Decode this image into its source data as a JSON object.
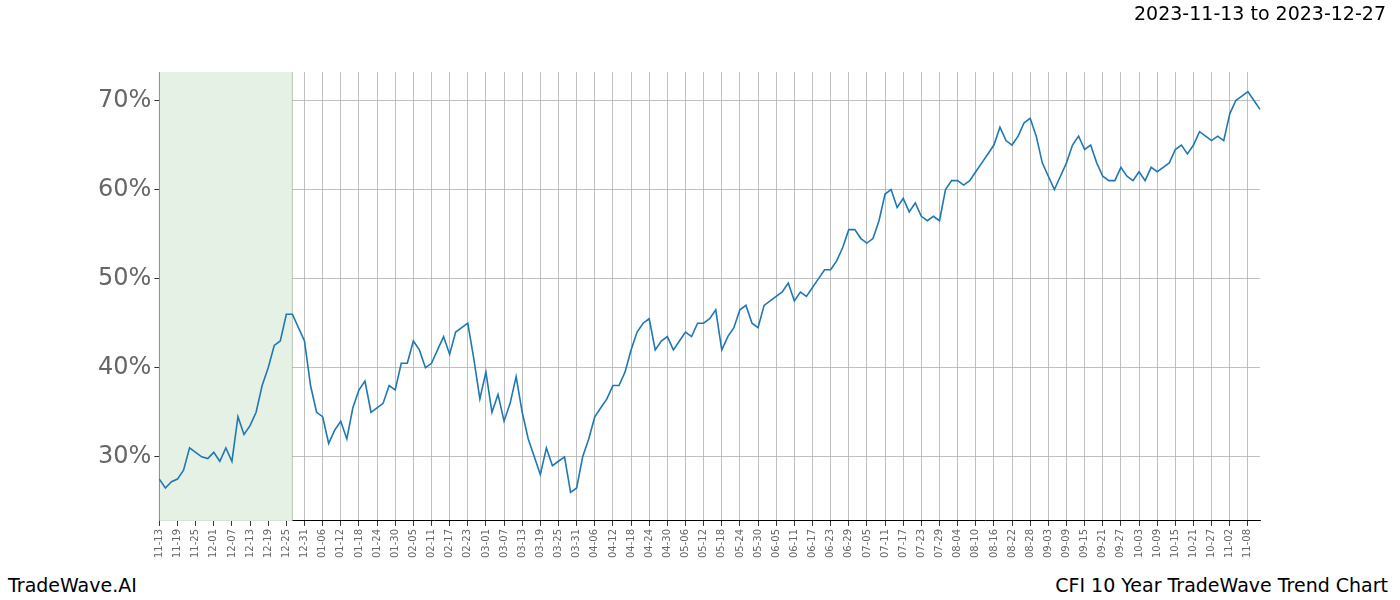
{
  "chart_data": {
    "type": "line",
    "title": "CFI 10 Year TradeWave Trend Chart",
    "subtitle": "2023-11-13 to 2023-12-27",
    "annotations": [
      "TradeWave.AI"
    ],
    "categories": [
      "11-13",
      null,
      null,
      "11-19",
      null,
      null,
      "11-25",
      null,
      null,
      "12-01",
      null,
      null,
      "12-07",
      null,
      null,
      "12-13",
      null,
      null,
      "12-19",
      null,
      null,
      "12-25",
      null,
      null,
      "12-31",
      null,
      null,
      "01-06",
      null,
      null,
      "01-12",
      null,
      null,
      "01-18",
      null,
      null,
      "01-24",
      null,
      null,
      "01-30",
      null,
      null,
      "02-05",
      null,
      null,
      "02-11",
      null,
      null,
      "02-17",
      null,
      null,
      "02-23",
      null,
      null,
      "03-01",
      null,
      null,
      "03-07",
      null,
      null,
      "03-13",
      null,
      null,
      "03-19",
      null,
      null,
      "03-25",
      null,
      null,
      "03-31",
      null,
      null,
      "04-06",
      null,
      null,
      "04-12",
      null,
      null,
      "04-18",
      null,
      null,
      "04-24",
      null,
      null,
      "04-30",
      null,
      null,
      "05-06",
      null,
      null,
      "05-12",
      null,
      null,
      "05-18",
      null,
      null,
      "05-24",
      null,
      null,
      "05-30",
      null,
      null,
      "06-05",
      null,
      null,
      "06-11",
      null,
      null,
      "06-17",
      null,
      null,
      "06-23",
      null,
      null,
      "06-29",
      null,
      null,
      "07-05",
      null,
      null,
      "07-11",
      null,
      null,
      "07-17",
      null,
      null,
      "07-23",
      null,
      null,
      "07-29",
      null,
      null,
      "08-04",
      null,
      null,
      "08-10",
      null,
      null,
      "08-16",
      null,
      null,
      "08-22",
      null,
      null,
      "08-28",
      null,
      null,
      "09-03",
      null,
      null,
      "09-09",
      null,
      null,
      "09-15",
      null,
      null,
      "09-21",
      null,
      null,
      "09-27",
      null,
      null,
      "10-03",
      null,
      null,
      "10-09",
      null,
      null,
      "10-15",
      null,
      null,
      "10-21",
      null,
      null,
      "10-27",
      null,
      null,
      "11-02",
      null,
      null,
      "11-08",
      null,
      null
    ],
    "values": [
      27.5,
      26.5,
      27.2,
      27.5,
      28.5,
      31,
      30.5,
      30,
      29.8,
      30.5,
      29.5,
      31,
      29.5,
      34.5,
      32.5,
      33.5,
      35,
      38,
      40,
      42.5,
      43,
      46,
      46,
      44.5,
      43,
      38,
      35,
      34.5,
      31.5,
      33,
      34,
      32,
      35.5,
      37.5,
      38.5,
      35,
      35.5,
      36,
      38,
      37.5,
      40.5,
      40.5,
      43,
      42,
      40,
      40.5,
      42,
      43.5,
      41.5,
      44,
      44.5,
      45,
      41,
      36.5,
      39.5,
      35,
      37,
      34,
      36,
      39,
      35,
      32,
      30,
      28,
      31,
      29,
      29.5,
      30,
      26,
      26.5,
      30,
      32,
      34.5,
      35.5,
      36.5,
      38,
      38,
      39.5,
      42,
      44,
      45,
      45.5,
      42,
      43,
      43.5,
      42,
      43,
      44,
      43.5,
      45,
      45,
      45.5,
      46.5,
      42,
      43.5,
      44.5,
      46.5,
      47,
      45,
      44.5,
      47,
      47.5,
      48,
      48.5,
      49.5,
      47.5,
      48.5,
      48,
      49,
      50,
      51,
      51,
      52,
      53.5,
      55.5,
      55.5,
      54.5,
      54,
      54.5,
      56.5,
      59.5,
      60,
      58,
      59,
      57.5,
      58.5,
      57,
      56.5,
      57,
      56.5,
      60,
      61,
      61,
      60.5,
      61,
      62,
      63,
      64,
      65,
      67,
      65.5,
      65,
      66,
      67.5,
      68,
      66,
      63,
      61.5,
      60,
      61.5,
      63,
      65,
      66,
      64.5,
      65,
      63,
      61.5,
      61,
      61,
      62.5,
      61.5,
      61,
      62,
      61,
      62.5,
      62,
      62.5,
      63,
      64.5,
      65,
      64,
      65,
      66.5,
      66,
      65.5,
      66,
      65.5,
      68.5,
      70,
      70.5,
      71,
      70,
      69
    ],
    "color": "#1f77b4",
    "ylim": [
      22.8,
      73.2
    ],
    "yticks": [
      {
        "value": 30,
        "label": "30%"
      },
      {
        "value": 40,
        "label": "40%"
      },
      {
        "value": 50,
        "label": "50%"
      },
      {
        "value": 60,
        "label": "60%"
      },
      {
        "value": 70,
        "label": "70%"
      }
    ],
    "shaded": {
      "start": 0,
      "end": 22,
      "color": "#e5f1e5"
    },
    "grid": true
  }
}
